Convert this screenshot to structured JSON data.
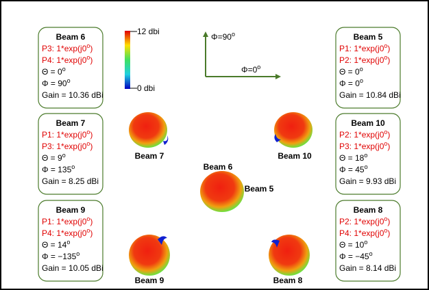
{
  "colorbar": {
    "max_label": "12 dbi",
    "min_label": "0 dbi"
  },
  "axes": {
    "up_label": [
      "Φ=90",
      "o"
    ],
    "right_label": [
      "Φ=0",
      "o"
    ]
  },
  "boxes": [
    {
      "title": "Beam 6",
      "lines": [
        [
          "P3: 1*exp(j0",
          "o",
          ")"
        ],
        [
          "P4: 1*exp(j0",
          "o",
          ")"
        ],
        [
          "Θ = 0",
          "o"
        ],
        [
          "Φ = 90",
          "o"
        ],
        [
          "Gain = 10.36 dBi"
        ]
      ]
    },
    {
      "title": "Beam 7",
      "lines": [
        [
          "P1: 1*exp(j0",
          "o",
          ")"
        ],
        [
          "P3: 1*exp(j0",
          "o",
          ")"
        ],
        [
          "Θ = 9",
          "o"
        ],
        [
          "Φ = 135",
          "o"
        ],
        [
          "Gain = 8.25 dBi"
        ]
      ]
    },
    {
      "title": "Beam 9",
      "lines": [
        [
          "P1: 1*exp(j0",
          "o",
          ")"
        ],
        [
          "P4: 1*exp(j0",
          "o",
          ")"
        ],
        [
          "Θ = 14",
          "o"
        ],
        [
          "Φ = −135",
          "o"
        ],
        [
          "Gain = 10.05 dBi"
        ]
      ]
    },
    {
      "title": "Beam 5",
      "lines": [
        [
          "P1: 1*exp(j0",
          "o",
          ")"
        ],
        [
          "P2: 1*exp(j0",
          "o",
          ")"
        ],
        [
          "Θ = 0",
          "o"
        ],
        [
          "Φ = 0",
          "o"
        ],
        [
          "Gain = 10.84 dBi"
        ]
      ]
    },
    {
      "title": "Beam 10",
      "lines": [
        [
          "P2: 1*exp(j0",
          "o",
          ")"
        ],
        [
          "P3: 1*exp(j0",
          "o",
          ")"
        ],
        [
          "Θ = 18",
          "o"
        ],
        [
          "Φ = 45",
          "o"
        ],
        [
          "Gain = 9.93 dBi"
        ]
      ]
    },
    {
      "title": "Beam 8",
      "lines": [
        [
          "P2: 1*exp(j0",
          "o",
          ")"
        ],
        [
          "P4: 1*exp(j0",
          "o",
          ")"
        ],
        [
          "Θ = 10",
          "o"
        ],
        [
          "Φ = −45",
          "o"
        ],
        [
          "Gain = 8.14 dBi"
        ]
      ]
    }
  ],
  "pattern_labels": [
    "Beam 7",
    "Beam 10",
    "Beam 6",
    "Beam 5",
    "Beam 9",
    "Beam 8"
  ]
}
